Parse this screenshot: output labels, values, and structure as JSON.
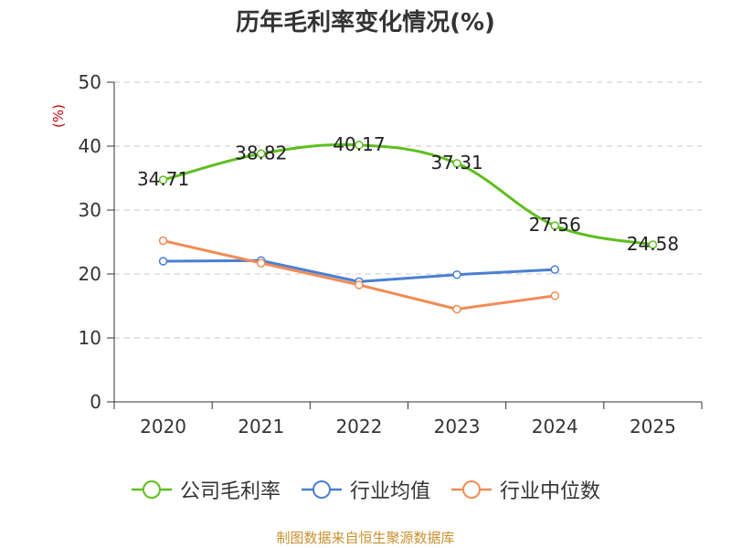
{
  "chart_data": {
    "type": "line",
    "title": "历年毛利率变化情况(%)",
    "ylabel": "(%)",
    "xlabel": "",
    "categories": [
      "2020",
      "2021",
      "2022",
      "2023",
      "2024",
      "2025"
    ],
    "ylim": [
      0,
      50
    ],
    "yticks": [
      0,
      10,
      20,
      30,
      40,
      50
    ],
    "grid": true,
    "legend_position": "bottom",
    "series": [
      {
        "name": "公司毛利率",
        "color": "#5ebe1f",
        "labeled": true,
        "values": [
          34.71,
          38.82,
          40.17,
          37.31,
          27.56,
          24.58
        ]
      },
      {
        "name": "行业均值",
        "color": "#4a7fd4",
        "labeled": false,
        "values": [
          22.0,
          22.1,
          18.8,
          19.9,
          20.7,
          null
        ]
      },
      {
        "name": "行业中位数",
        "color": "#f28b55",
        "labeled": false,
        "values": [
          25.2,
          21.7,
          18.3,
          14.5,
          16.6,
          null
        ]
      }
    ]
  },
  "source_note": "制图数据来自恒生聚源数据库"
}
